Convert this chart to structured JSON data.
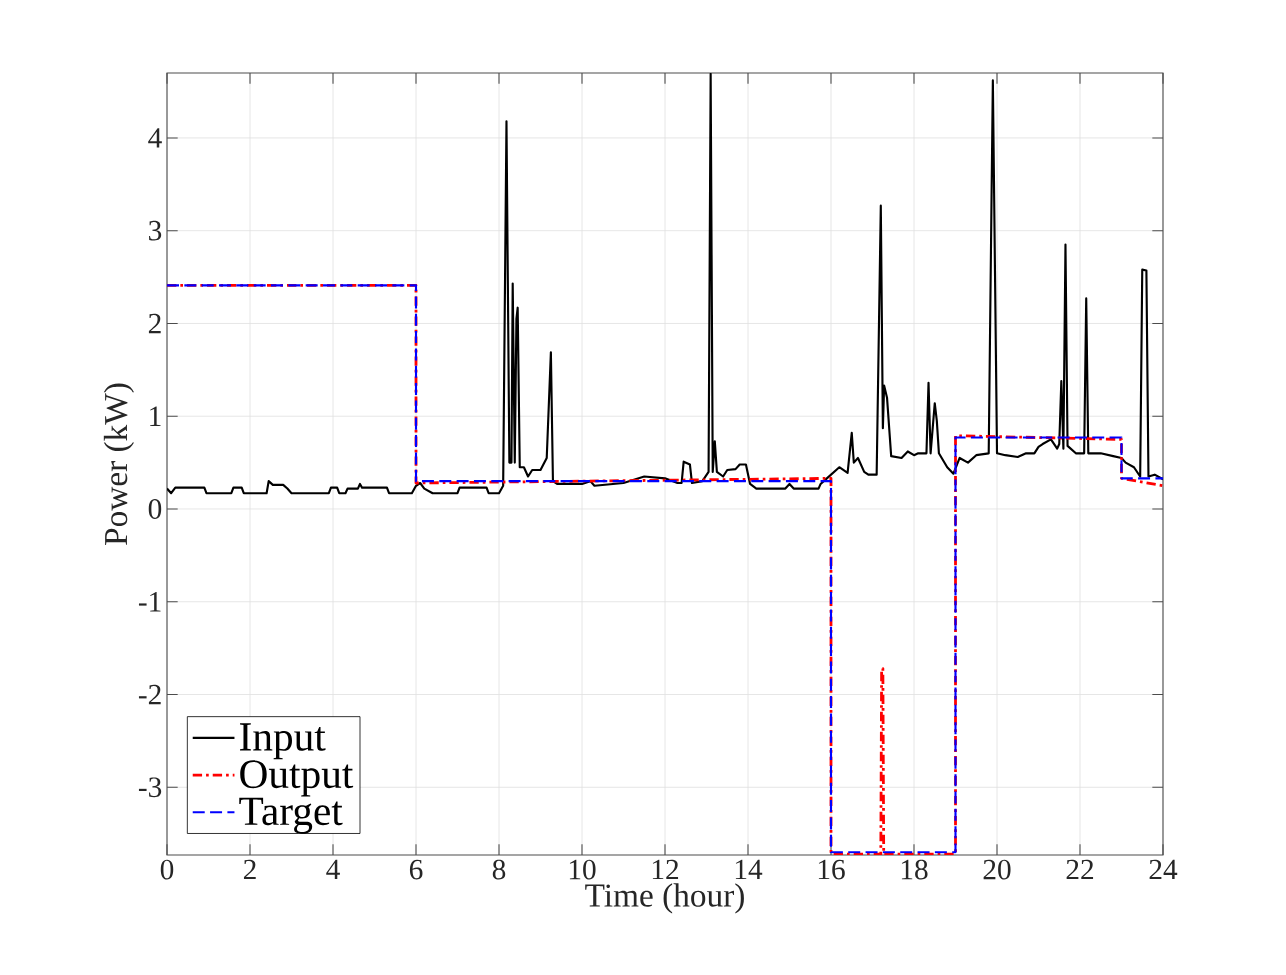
{
  "chart_data": {
    "type": "line",
    "xlabel": "Time (hour)",
    "ylabel": "Power (kW)",
    "xlim": [
      0,
      24
    ],
    "ylim": [
      -3.73,
      4.7
    ],
    "xticks": [
      0,
      2,
      4,
      6,
      8,
      10,
      12,
      14,
      16,
      18,
      20,
      22,
      24
    ],
    "yticks": [
      -3,
      -2,
      -1,
      0,
      1,
      2,
      3,
      4
    ],
    "grid": true,
    "legend": "bottom left",
    "series": [
      {
        "name": "Input",
        "color": "#000000",
        "line_style": "solid",
        "x": [
          0,
          0.1,
          0.2,
          0.9,
          0.95,
          1.55,
          1.6,
          1.8,
          1.85,
          2.4,
          2.45,
          2.55,
          2.8,
          2.9,
          3.0,
          3.9,
          3.95,
          4.1,
          4.15,
          4.3,
          4.35,
          4.6,
          4.65,
          4.7,
          5.3,
          5.35,
          5.9,
          6.0,
          6.1,
          6.2,
          6.4,
          7.0,
          7.05,
          7.7,
          7.75,
          8.0,
          8.1,
          8.18,
          8.25,
          8.3,
          8.33,
          8.38,
          8.42,
          8.45,
          8.5,
          8.6,
          8.7,
          8.8,
          9.0,
          9.15,
          9.25,
          9.3,
          9.4,
          10,
          10.2,
          10.3,
          11,
          11.5,
          12.0,
          12.3,
          12.4,
          12.45,
          12.6,
          12.65,
          12.9,
          13.05,
          13.1,
          13.15,
          13.2,
          13.25,
          13.4,
          13.5,
          13.7,
          13.8,
          13.95,
          14.05,
          14.2,
          14.9,
          15.0,
          15.1,
          15.7,
          15.75,
          15.9,
          16.1,
          16.2,
          16.4,
          16.5,
          16.55,
          16.65,
          16.8,
          16.9,
          17.1,
          17.2,
          17.25,
          17.28,
          17.35,
          17.45,
          17.7,
          17.85,
          18.0,
          18.1,
          18.3,
          18.35,
          18.4,
          18.5,
          18.55,
          18.6,
          18.8,
          18.95,
          19.1,
          19.3,
          19.5,
          19.8,
          19.9,
          20.0,
          20.2,
          20.5,
          20.7,
          20.9,
          21.0,
          21.1,
          21.3,
          21.45,
          21.5,
          21.55,
          21.6,
          21.65,
          21.7,
          21.9,
          22.1,
          22.15,
          22.2,
          22.5,
          22.8,
          23.0,
          23.1,
          23.3,
          23.45,
          23.5,
          23.6,
          23.65,
          23.8,
          24
        ],
        "values": [
          0.22,
          0.17,
          0.23,
          0.23,
          0.17,
          0.17,
          0.23,
          0.23,
          0.17,
          0.17,
          0.3,
          0.26,
          0.26,
          0.22,
          0.17,
          0.17,
          0.23,
          0.23,
          0.17,
          0.17,
          0.22,
          0.22,
          0.27,
          0.23,
          0.23,
          0.17,
          0.17,
          0.25,
          0.28,
          0.22,
          0.17,
          0.17,
          0.23,
          0.23,
          0.17,
          0.17,
          0.25,
          4.18,
          0.5,
          0.5,
          2.43,
          0.5,
          2.05,
          2.17,
          0.45,
          0.45,
          0.35,
          0.42,
          0.42,
          0.55,
          1.69,
          0.3,
          0.27,
          0.27,
          0.3,
          0.25,
          0.28,
          0.35,
          0.33,
          0.28,
          0.28,
          0.51,
          0.48,
          0.28,
          0.3,
          0.4,
          4.69,
          0.4,
          0.73,
          0.4,
          0.35,
          0.42,
          0.43,
          0.48,
          0.48,
          0.27,
          0.22,
          0.22,
          0.27,
          0.22,
          0.22,
          0.27,
          0.33,
          0.41,
          0.45,
          0.39,
          0.82,
          0.5,
          0.55,
          0.4,
          0.37,
          0.37,
          3.27,
          0.87,
          1.33,
          1.2,
          0.57,
          0.55,
          0.62,
          0.58,
          0.6,
          0.6,
          1.36,
          0.6,
          1.14,
          0.95,
          0.6,
          0.45,
          0.38,
          0.55,
          0.5,
          0.58,
          0.6,
          4.62,
          0.6,
          0.58,
          0.56,
          0.6,
          0.6,
          0.67,
          0.7,
          0.75,
          0.65,
          0.7,
          1.38,
          0.65,
          2.85,
          0.68,
          0.6,
          0.6,
          2.27,
          0.6,
          0.6,
          0.57,
          0.55,
          0.5,
          0.45,
          0.35,
          2.58,
          2.57,
          0.35,
          0.37,
          0.32
        ]
      },
      {
        "name": "Output",
        "color": "#ff0000",
        "line_style": "dashdot",
        "x": [
          0,
          6,
          6,
          16,
          16,
          17.2,
          17.22,
          17.25,
          17.27,
          19,
          19,
          23,
          23,
          24
        ],
        "values": [
          2.41,
          2.41,
          0.28,
          0.33,
          -3.72,
          -3.72,
          -1.72,
          -1.72,
          -3.72,
          -3.72,
          0.79,
          0.75,
          0.33,
          0.25
        ]
      },
      {
        "name": "Target",
        "color": "#0000ff",
        "line_style": "dashed",
        "x": [
          0,
          6,
          6,
          16,
          16,
          19,
          19,
          23,
          23,
          24
        ],
        "values": [
          2.41,
          2.41,
          0.3,
          0.3,
          -3.7,
          -3.7,
          0.77,
          0.77,
          0.33,
          0.33
        ]
      }
    ]
  }
}
